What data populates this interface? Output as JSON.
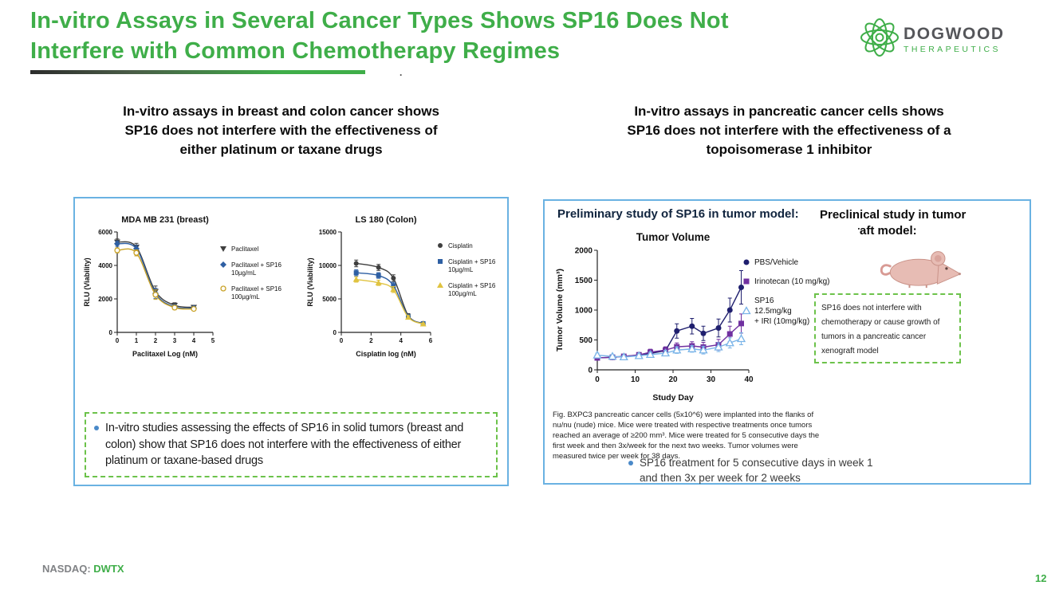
{
  "slide": {
    "title_lines": [
      "In-vitro Assays in Several Cancer Types Shows SP16 Does Not",
      "Interfere with Common Chemotherapy Regimes"
    ],
    "stray_mark": ".",
    "footer_label": "NASDAQ:",
    "footer_ticker": "DWTX",
    "page_number": "12"
  },
  "logo": {
    "name": "DOGWOOD",
    "sub": "THERAPEUTICS"
  },
  "left_section": {
    "heading_lines": [
      "In-vitro assays in breast and colon cancer shows",
      "SP16 does not interfere with the effectiveness of",
      "either platinum or taxane drugs"
    ],
    "callout": "In-vitro studies assessing the effects of SP16 in solid tumors (breast and colon) show that SP16 does not interfere with the effectiveness of either platinum or taxane-based drugs"
  },
  "right_section": {
    "heading_lines": [
      "In-vitro assays in pancreatic cancer cells shows",
      "SP16 does not interfere with the effectiveness of a",
      "topoisomerase 1 inhibitor"
    ],
    "prelim_label": "Preliminary study of SP16 in tumor model:",
    "preclinical_label": "Preclinical study in tumor xenograft model:",
    "callout": "SP16 does not interfere with chemotherapy or cause growth of tumors in a pancreatic cancer xenograft model",
    "fig_caption": "Fig. BXPC3 pancreatic cancer cells (5x10^6) were implanted into the flanks of nu/nu (nude) mice. Mice were treated with respective treatments once tumors reached an average of ≥200 mm³. Mice were treated for 5 consecutive days the first week and then 3x/week for the next two weeks. Tumor volumes were measured twice per week for 38 days.",
    "bullet": "SP16 treatment for 5 consecutive days in week 1 and then 3x per week for 2 weeks"
  },
  "colors": {
    "accent_green": "#3fae49",
    "panel_border_blue": "#6ab2e2",
    "callout_dashed_green": "#6cc24a",
    "bullet_blue": "#4a89c8",
    "footer_gray": "#808285"
  },
  "chart_data": [
    {
      "type": "line",
      "title": "MDA MB 231 (breast)",
      "xlabel": "Paclitaxel Log (nM)",
      "ylabel": "RLU (Viability)",
      "xlim": [
        0,
        5
      ],
      "ylim": [
        0,
        6000
      ],
      "xticks": [
        0,
        1,
        2,
        3,
        4,
        5
      ],
      "yticks": [
        0,
        2000,
        4000,
        6000
      ],
      "grid": false,
      "legend_position": "right",
      "x": [
        0,
        1,
        2,
        3,
        4
      ],
      "series": [
        {
          "name": "Paclitaxel",
          "legend_lines": [
            "Paclitaxel"
          ],
          "color": "#3f3f3f",
          "marker": "triangle-down",
          "values": [
            5400,
            5100,
            2450,
            1620,
            1500
          ],
          "errors": [
            180,
            220,
            320,
            150,
            120
          ]
        },
        {
          "name": "Paclitaxel + SP16 10µg/mL",
          "legend_lines": [
            "Paclitaxel + SP16",
            "10µg/mL"
          ],
          "color": "#2e5fa3",
          "marker": "diamond",
          "values": [
            5300,
            5000,
            2330,
            1520,
            1450
          ],
          "errors": [
            160,
            200,
            300,
            140,
            110
          ]
        },
        {
          "name": "Paclitaxel + SP16 100µg/mL",
          "legend_lines": [
            "Paclitaxel + SP16",
            "100µg/mL"
          ],
          "color": "#c9a227",
          "marker": "circle-open",
          "values": [
            4900,
            4750,
            2250,
            1480,
            1400
          ],
          "errors": [
            150,
            180,
            280,
            130,
            100
          ]
        }
      ]
    },
    {
      "type": "line",
      "title": "LS 180 (Colon)",
      "xlabel": "Cisplatin log (nM)",
      "ylabel": "RLU (Viability)",
      "xlim": [
        0,
        6
      ],
      "ylim": [
        0,
        15000
      ],
      "xticks": [
        0,
        2,
        4,
        6
      ],
      "yticks": [
        0,
        5000,
        10000,
        15000
      ],
      "grid": false,
      "legend_position": "right",
      "x": [
        1,
        2.5,
        3.5,
        4.5,
        5.5
      ],
      "series": [
        {
          "name": "Cisplatin",
          "legend_lines": [
            "Cisplatin"
          ],
          "color": "#3f3f3f",
          "marker": "circle",
          "values": [
            10300,
            9700,
            8100,
            2500,
            1350
          ],
          "errors": [
            500,
            450,
            500,
            300,
            180
          ]
        },
        {
          "name": "Cisplatin + SP16 10µg/mL",
          "legend_lines": [
            "Cisplatin + SP16",
            "10µg/mL"
          ],
          "color": "#2e5fa3",
          "marker": "square",
          "values": [
            8900,
            8500,
            7000,
            2350,
            1300
          ],
          "errors": [
            450,
            420,
            480,
            280,
            160
          ]
        },
        {
          "name": "Cisplatin + SP16 100µg/mL",
          "legend_lines": [
            "Cisplatin + SP16",
            "100µg/mL"
          ],
          "color": "#e0c340",
          "marker": "triangle-up",
          "values": [
            7900,
            7400,
            6400,
            2250,
            1250
          ],
          "errors": [
            400,
            400,
            450,
            260,
            150
          ]
        }
      ]
    },
    {
      "type": "line",
      "title": "Tumor Volume",
      "context_label": "Preliminary study of SP16 in tumor model:",
      "xlabel": "Study Day",
      "ylabel": "Tumor Volume (mm³)",
      "xlim": [
        0,
        40
      ],
      "ylim": [
        0,
        2000
      ],
      "xticks": [
        0,
        10,
        20,
        30,
        40
      ],
      "yticks": [
        0,
        500,
        1000,
        1500,
        2000
      ],
      "grid": false,
      "legend_position": "right",
      "x": [
        0,
        4,
        7,
        11,
        14,
        18,
        21,
        25,
        28,
        32,
        35,
        38
      ],
      "series": [
        {
          "name": "PBS/Vehicle",
          "legend_lines": [
            "PBS/Vehicle"
          ],
          "color": "#1f1f6e",
          "marker": "circle",
          "values": [
            200,
            210,
            225,
            245,
            275,
            320,
            650,
            730,
            610,
            700,
            1000,
            1380
          ],
          "errors": [
            30,
            30,
            35,
            40,
            50,
            60,
            120,
            130,
            120,
            150,
            200,
            280
          ]
        },
        {
          "name": "Irinotecan (10 mg/kg)",
          "legend_lines": [
            "Irinotecan (10 mg/kg)"
          ],
          "color": "#7030a0",
          "marker": "square",
          "values": [
            200,
            210,
            225,
            250,
            295,
            330,
            385,
            400,
            380,
            420,
            600,
            775
          ],
          "errors": [
            30,
            30,
            35,
            40,
            50,
            55,
            65,
            70,
            80,
            90,
            130,
            160
          ]
        },
        {
          "name": "SP16 12.5mg/kg + IRI (10mg/kg)",
          "legend_lines": [
            "SP16",
            "12.5mg/kg",
            "+ IRI (10mg/kg)"
          ],
          "color": "#7ab4e8",
          "marker": "triangle-open",
          "values": [
            245,
            225,
            215,
            235,
            255,
            280,
            330,
            350,
            330,
            380,
            450,
            520
          ],
          "errors": [
            35,
            30,
            30,
            35,
            40,
            45,
            55,
            55,
            65,
            75,
            85,
            100
          ]
        }
      ]
    }
  ]
}
